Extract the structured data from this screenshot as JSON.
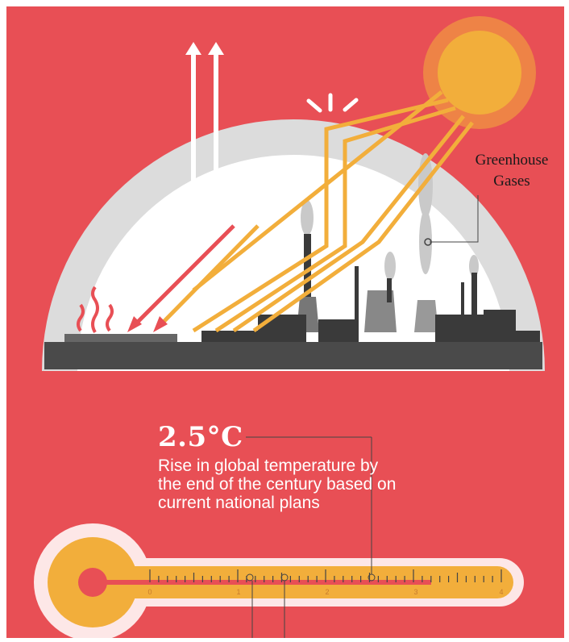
{
  "colors": {
    "background_red": "#e84f55",
    "dome_grey": "#dcdcdc",
    "sun_orange": "#f2ae3b",
    "ray_orange": "#f2ae3b",
    "ray_red": "#e84f55",
    "outgoing_white": "#ffffff",
    "thermometer_fill": "#f2ae3b",
    "thermometer_body": "#fde7e7"
  },
  "labels": {
    "greenhouse_line1": "Greenhouse",
    "greenhouse_line2": "Gases"
  },
  "thermometer": {
    "value": "2.5°C",
    "description": "Rise in global temperature by the end of the century based on current national plans",
    "scale_min": 0,
    "scale_max": 4,
    "tick_labels": [
      "0",
      "1",
      "2",
      "3",
      "4"
    ],
    "reading": 2.5
  },
  "icons": [
    "sun-icon",
    "heat-wave-icon",
    "factory-skyline-icon",
    "arrow-up-icon",
    "arrow-down-left-icon"
  ]
}
